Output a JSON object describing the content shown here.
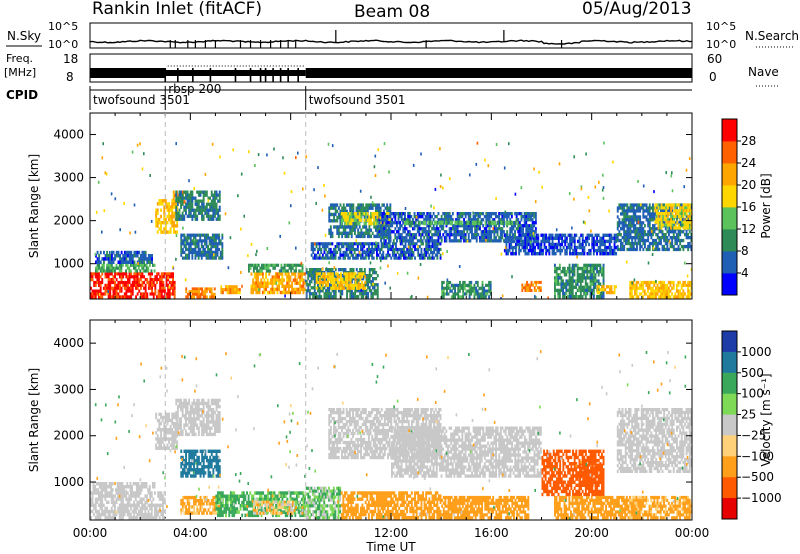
{
  "header": {
    "station": "Rankin Inlet (fitACF)",
    "beam": "Beam 08",
    "date": "05/Aug/2013"
  },
  "status_panels": {
    "nsky_label": "N.Sky",
    "nsky_ticks": [
      "10^5",
      "10^0"
    ],
    "nsearch_label": "N.Search",
    "nsearch_ticks": [
      "10^5",
      "10^0"
    ],
    "freq_label": "Freq.",
    "freq_unit": "[MHz]",
    "freq_ticks": [
      "18",
      "8"
    ],
    "nave_label": "Nave",
    "nave_ticks": [
      "60",
      "0"
    ],
    "cpid_label": "CPID",
    "cpid_segments": [
      {
        "name": "twofsound",
        "id": "3501",
        "start_hr": 0,
        "end_hr": 3.0
      },
      {
        "name": "rbsp",
        "id": "200",
        "start_hr": 3.0,
        "end_hr": 8.6
      },
      {
        "name": "twofsound",
        "id": "3501",
        "start_hr": 8.6,
        "end_hr": 24
      }
    ]
  },
  "colors": {
    "power_scale": [
      "#0000ff",
      "#1f5fb4",
      "#2e8b57",
      "#5cc25c",
      "#ffd700",
      "#ffa500",
      "#ff6000",
      "#ff0000"
    ],
    "velocity_scale": [
      "#1e3ca8",
      "#1f7a9e",
      "#3aa85a",
      "#7ed957",
      "#c8c8c8",
      "#ffd27a",
      "#ff9f1a",
      "#ff5a00",
      "#e60000"
    ],
    "ground_scatter": "#c8c8c8"
  },
  "chart_data": [
    {
      "type": "heatmap",
      "title": "",
      "ylabel": "Slant Range [km]",
      "xlabel": "",
      "x_range_hours": [
        0,
        24
      ],
      "ylim": [
        180,
        4500
      ],
      "y_ticks": [
        "1000",
        "2000",
        "3000",
        "4000"
      ],
      "x_ticks": [],
      "colorbar_label": "Power [dB]",
      "colorbar_ticks": [
        "4",
        "8",
        "12",
        "16",
        "20",
        "24",
        "28"
      ],
      "color_range": [
        0,
        30
      ],
      "regions": [
        {
          "t0": 0.0,
          "t1": 3.4,
          "r0": 200,
          "r1": 800,
          "level": 29
        },
        {
          "t0": 0.2,
          "t1": 2.6,
          "r0": 800,
          "r1": 1000,
          "level": 12
        },
        {
          "t0": 0.2,
          "t1": 2.5,
          "r0": 1000,
          "r1": 1300,
          "level": 6
        },
        {
          "t0": 2.6,
          "t1": 3.5,
          "r0": 1700,
          "r1": 2500,
          "level": 20
        },
        {
          "t0": 3.3,
          "t1": 3.8,
          "r0": 2400,
          "r1": 2700,
          "level": 22
        },
        {
          "t0": 3.4,
          "t1": 5.2,
          "r0": 2000,
          "r1": 2700,
          "level": 9
        },
        {
          "t0": 3.6,
          "t1": 5.3,
          "r0": 1100,
          "r1": 1700,
          "level": 7
        },
        {
          "t0": 3.8,
          "t1": 5.0,
          "r0": 200,
          "r1": 450,
          "level": 24
        },
        {
          "t0": 5.2,
          "t1": 6.0,
          "r0": 300,
          "r1": 500,
          "level": 22
        },
        {
          "t0": 6.4,
          "t1": 8.6,
          "r0": 300,
          "r1": 800,
          "level": 22
        },
        {
          "t0": 6.3,
          "t1": 8.5,
          "r0": 800,
          "r1": 1000,
          "level": 11
        },
        {
          "t0": 8.6,
          "t1": 11.5,
          "r0": 200,
          "r1": 900,
          "level": 9
        },
        {
          "t0": 9.0,
          "t1": 11.0,
          "r0": 400,
          "r1": 800,
          "level": 19
        },
        {
          "t0": 8.8,
          "t1": 14.0,
          "r0": 1100,
          "r1": 1500,
          "level": 6
        },
        {
          "t0": 9.5,
          "t1": 12.0,
          "r0": 1600,
          "r1": 2400,
          "level": 8
        },
        {
          "t0": 10.0,
          "t1": 12.0,
          "r0": 1900,
          "r1": 2200,
          "level": 17
        },
        {
          "t0": 11.5,
          "t1": 17.8,
          "r0": 1500,
          "r1": 2200,
          "level": 6
        },
        {
          "t0": 12.5,
          "t1": 17.0,
          "r0": 1900,
          "r1": 2000,
          "level": 13
        },
        {
          "t0": 14.0,
          "t1": 16.0,
          "r0": 200,
          "r1": 600,
          "level": 10
        },
        {
          "t0": 16.5,
          "t1": 21.0,
          "r0": 1200,
          "r1": 1700,
          "level": 5
        },
        {
          "t0": 17.2,
          "t1": 18.0,
          "r0": 350,
          "r1": 600,
          "level": 24
        },
        {
          "t0": 18.5,
          "t1": 20.5,
          "r0": 200,
          "r1": 1000,
          "level": 10
        },
        {
          "t0": 20.2,
          "t1": 21.0,
          "r0": 300,
          "r1": 500,
          "level": 20
        },
        {
          "t0": 21.0,
          "t1": 24.0,
          "r0": 1300,
          "r1": 2400,
          "level": 7
        },
        {
          "t0": 22.5,
          "t1": 24.0,
          "r0": 1800,
          "r1": 2400,
          "level": 18
        },
        {
          "t0": 21.5,
          "t1": 24.0,
          "r0": 200,
          "r1": 600,
          "level": 20
        }
      ]
    },
    {
      "type": "heatmap",
      "title": "",
      "ylabel": "Slant Range [km]",
      "xlabel": "Time UT",
      "x_range_hours": [
        0,
        24
      ],
      "ylim": [
        180,
        4500
      ],
      "y_ticks": [
        "1000",
        "2000",
        "3000",
        "4000"
      ],
      "x_ticks": [
        "00:00",
        "04:00",
        "08:00",
        "12:00",
        "16:00",
        "20:00",
        "00:00"
      ],
      "colorbar_label": "Velocity [m s⁻¹]",
      "colorbar_ticks": [
        "1000",
        "500",
        "100",
        "25",
        "−25",
        "−100",
        "−500",
        "−1000"
      ],
      "color_range": [
        -1000,
        1000
      ],
      "regions": [
        {
          "t0": 0.0,
          "t1": 3.0,
          "r0": 200,
          "r1": 800,
          "value": 0,
          "gs": true
        },
        {
          "t0": 0.1,
          "t1": 2.6,
          "r0": 800,
          "r1": 1000,
          "value": 20,
          "gs": true
        },
        {
          "t0": 2.6,
          "t1": 3.5,
          "r0": 1700,
          "r1": 2500,
          "value": 0,
          "gs": true
        },
        {
          "t0": 3.4,
          "t1": 5.2,
          "r0": 2000,
          "r1": 2800,
          "value": 0,
          "gs": true
        },
        {
          "t0": 3.6,
          "t1": 5.2,
          "r0": 1100,
          "r1": 1700,
          "value": 600
        },
        {
          "t0": 3.6,
          "t1": 5.2,
          "r0": 300,
          "r1": 700,
          "value": -150
        },
        {
          "t0": 5.0,
          "t1": 8.6,
          "r0": 250,
          "r1": 800,
          "value": 150
        },
        {
          "t0": 6.5,
          "t1": 8.5,
          "r0": 300,
          "r1": 600,
          "value": -60
        },
        {
          "t0": 8.6,
          "t1": 10.0,
          "r0": 200,
          "r1": 900,
          "value": 80
        },
        {
          "t0": 9.5,
          "t1": 14.0,
          "r0": 1500,
          "r1": 2600,
          "value": 0,
          "gs": true
        },
        {
          "t0": 10.0,
          "t1": 14.0,
          "r0": 200,
          "r1": 800,
          "value": -300
        },
        {
          "t0": 12.0,
          "t1": 18.0,
          "r0": 1100,
          "r1": 2200,
          "value": 0,
          "gs": true
        },
        {
          "t0": 14.0,
          "t1": 17.5,
          "r0": 200,
          "r1": 700,
          "value": -200
        },
        {
          "t0": 18.0,
          "t1": 20.5,
          "r0": 700,
          "r1": 1700,
          "value": -600
        },
        {
          "t0": 19.5,
          "t1": 20.5,
          "r0": 900,
          "r1": 1400,
          "value": -900
        },
        {
          "t0": 18.5,
          "t1": 22.0,
          "r0": 200,
          "r1": 700,
          "value": -250
        },
        {
          "t0": 21.0,
          "t1": 24.0,
          "r0": 1200,
          "r1": 2600,
          "value": 0,
          "gs": true
        },
        {
          "t0": 21.5,
          "t1": 24.0,
          "r0": 200,
          "r1": 700,
          "value": -150
        }
      ]
    }
  ]
}
